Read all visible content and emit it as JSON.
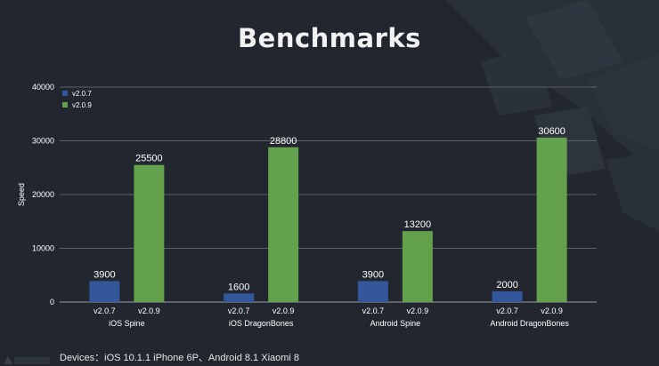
{
  "title": "Benchmarks",
  "footer": "Devices：iOS 10.1.1 iPhone 6P、Android 8.1 Xiaomi 8",
  "colors": {
    "background": "#22272f",
    "v207": "#33579a",
    "v209": "#64a14c",
    "grid": "#5c6068",
    "text": "#ffffff"
  },
  "chart_data": {
    "type": "bar",
    "title": "Benchmarks",
    "ylabel": "Speed",
    "xlabel": "",
    "ylim": [
      0,
      40000
    ],
    "yticks": [
      0,
      10000,
      20000,
      30000,
      40000
    ],
    "grid": true,
    "legend_position": "top-left",
    "categories": [
      "iOS Spine",
      "iOS DragonBones",
      "Android Spine",
      "Android DragonBones"
    ],
    "series": [
      {
        "name": "v2.0.7",
        "color": "#33579a",
        "values": [
          3900,
          1600,
          3900,
          2000
        ]
      },
      {
        "name": "v2.0.9",
        "color": "#64a14c",
        "values": [
          25500,
          28800,
          13200,
          30600
        ]
      }
    ]
  }
}
